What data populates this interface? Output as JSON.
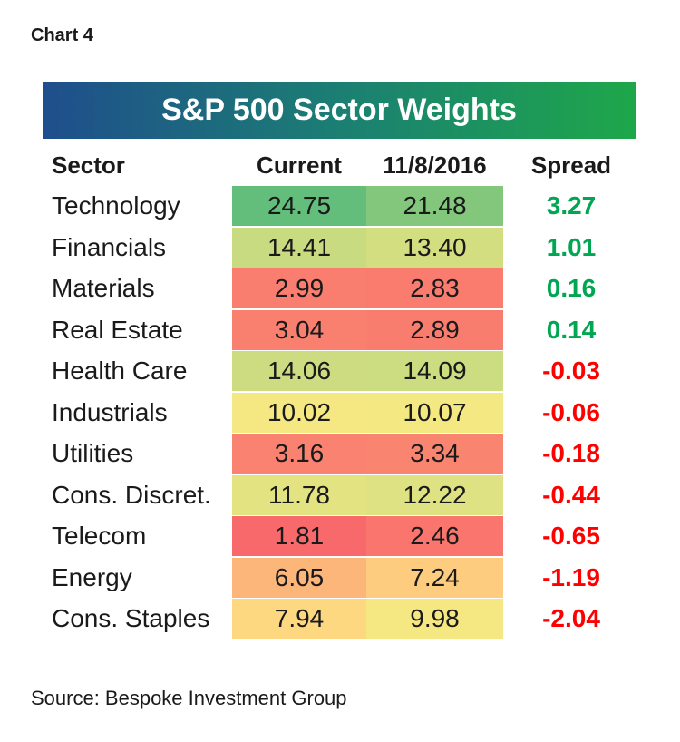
{
  "label": "Chart 4",
  "source": "Source: Bespoke Investment Group",
  "chart_data": {
    "type": "table",
    "title": "S&P 500 Sector Weights",
    "columns": [
      "Sector",
      "Current",
      "11/8/2016",
      "Spread"
    ],
    "rows": [
      {
        "sector": "Technology",
        "current": "24.75",
        "prev": "21.48",
        "spread": "3.27"
      },
      {
        "sector": "Financials",
        "current": "14.41",
        "prev": "13.40",
        "spread": "1.01"
      },
      {
        "sector": "Materials",
        "current": "2.99",
        "prev": "2.83",
        "spread": "0.16"
      },
      {
        "sector": "Real Estate",
        "current": "3.04",
        "prev": "2.89",
        "spread": "0.14"
      },
      {
        "sector": "Health Care",
        "current": "14.06",
        "prev": "14.09",
        "spread": "-0.03"
      },
      {
        "sector": "Industrials",
        "current": "10.02",
        "prev": "10.07",
        "spread": "-0.06"
      },
      {
        "sector": "Utilities",
        "current": "3.16",
        "prev": "3.34",
        "spread": "-0.18"
      },
      {
        "sector": "Cons. Discret.",
        "current": "11.78",
        "prev": "12.22",
        "spread": "-0.44"
      },
      {
        "sector": "Telecom",
        "current": "1.81",
        "prev": "2.46",
        "spread": "-0.65"
      },
      {
        "sector": "Energy",
        "current": "6.05",
        "prev": "7.24",
        "spread": "-1.19"
      },
      {
        "sector": "Cons. Staples",
        "current": "7.94",
        "prev": "9.98",
        "spread": "-2.04"
      }
    ]
  },
  "colors": {
    "positive": "#00a651",
    "negative": "#ff0000",
    "heat_low": "#f8696b",
    "heat_mid": "#ffeb84",
    "heat_high": "#63be7b"
  }
}
